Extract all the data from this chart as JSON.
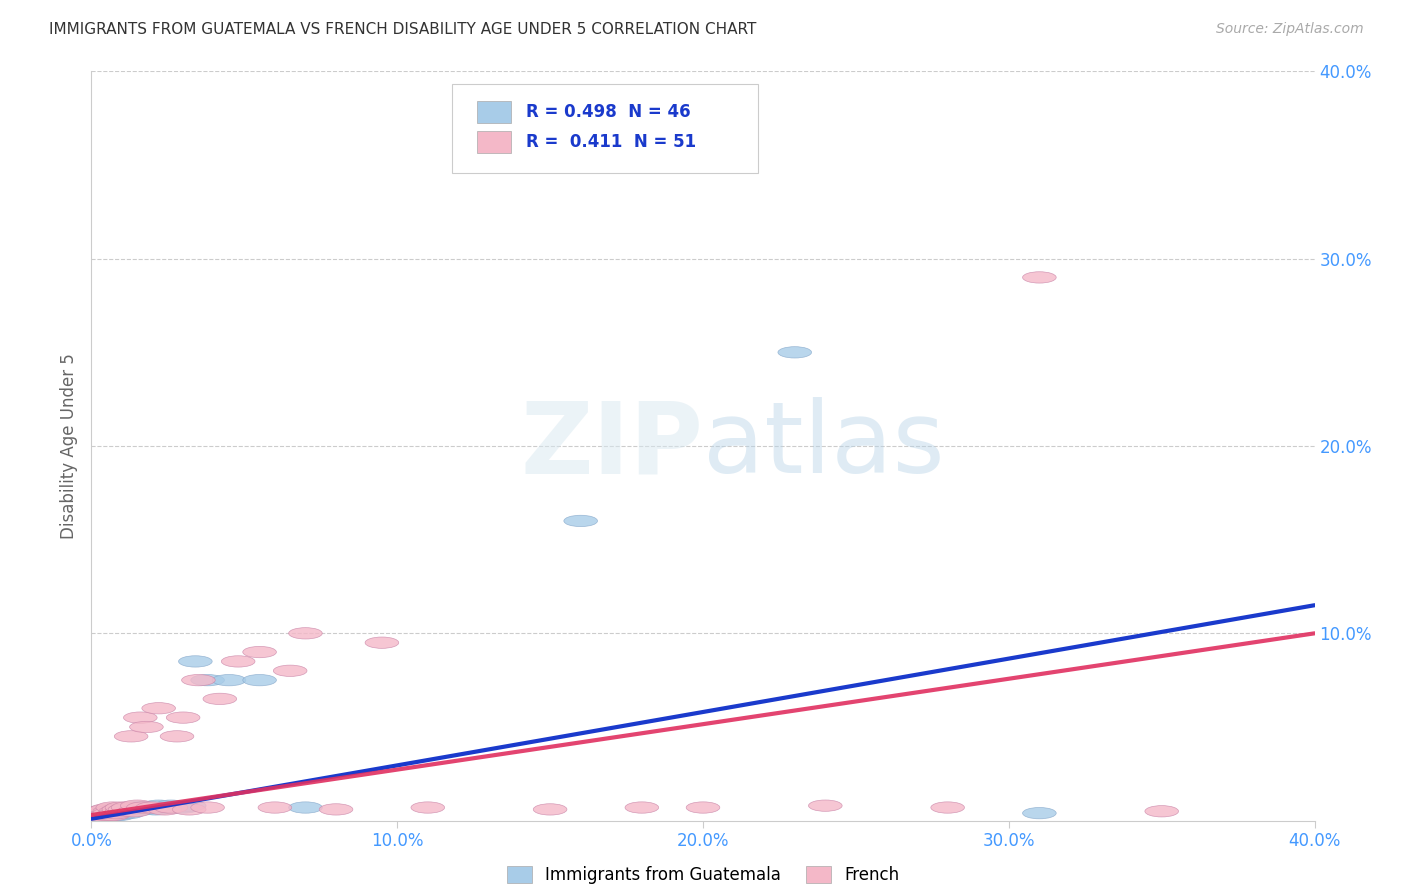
{
  "title": "IMMIGRANTS FROM GUATEMALA VS FRENCH DISABILITY AGE UNDER 5 CORRELATION CHART",
  "source": "Source: ZipAtlas.com",
  "ylabel": "Disability Age Under 5",
  "xlim": [
    0.0,
    0.4
  ],
  "ylim": [
    0.0,
    0.4
  ],
  "xtick_labels": [
    "0.0%",
    "10.0%",
    "20.0%",
    "30.0%",
    "40.0%"
  ],
  "xtick_values": [
    0.0,
    0.1,
    0.2,
    0.3,
    0.4
  ],
  "ytick_labels": [
    "10.0%",
    "20.0%",
    "30.0%",
    "40.0%"
  ],
  "ytick_values": [
    0.1,
    0.2,
    0.3,
    0.4
  ],
  "legend1_R": "0.498",
  "legend1_N": "46",
  "legend2_R": "0.411",
  "legend2_N": "51",
  "blue_color": "#a8cce8",
  "pink_color": "#f4b8c8",
  "blue_line_color": "#1a3acc",
  "pink_line_color": "#e03060",
  "axis_label_color": "#4499ff",
  "blue_scatter_x": [
    0.001,
    0.002,
    0.002,
    0.003,
    0.003,
    0.004,
    0.004,
    0.005,
    0.005,
    0.006,
    0.006,
    0.007,
    0.007,
    0.008,
    0.008,
    0.009,
    0.009,
    0.01,
    0.01,
    0.011,
    0.011,
    0.012,
    0.012,
    0.013,
    0.014,
    0.015,
    0.016,
    0.017,
    0.018,
    0.019,
    0.02,
    0.021,
    0.022,
    0.024,
    0.026,
    0.028,
    0.03,
    0.032,
    0.034,
    0.038,
    0.045,
    0.055,
    0.07,
    0.16,
    0.23,
    0.31
  ],
  "blue_scatter_y": [
    0.003,
    0.004,
    0.002,
    0.005,
    0.003,
    0.003,
    0.005,
    0.004,
    0.002,
    0.005,
    0.003,
    0.004,
    0.006,
    0.003,
    0.005,
    0.004,
    0.003,
    0.005,
    0.004,
    0.006,
    0.005,
    0.004,
    0.006,
    0.005,
    0.007,
    0.007,
    0.007,
    0.006,
    0.007,
    0.007,
    0.007,
    0.006,
    0.008,
    0.007,
    0.008,
    0.007,
    0.007,
    0.008,
    0.085,
    0.075,
    0.075,
    0.075,
    0.007,
    0.16,
    0.25,
    0.004
  ],
  "pink_scatter_x": [
    0.001,
    0.002,
    0.002,
    0.003,
    0.003,
    0.004,
    0.004,
    0.005,
    0.005,
    0.006,
    0.006,
    0.007,
    0.007,
    0.008,
    0.008,
    0.009,
    0.01,
    0.01,
    0.011,
    0.012,
    0.013,
    0.014,
    0.015,
    0.016,
    0.017,
    0.018,
    0.02,
    0.022,
    0.024,
    0.026,
    0.028,
    0.03,
    0.032,
    0.035,
    0.038,
    0.042,
    0.048,
    0.055,
    0.06,
    0.065,
    0.07,
    0.08,
    0.095,
    0.11,
    0.15,
    0.18,
    0.2,
    0.24,
    0.28,
    0.31,
    0.35
  ],
  "pink_scatter_y": [
    0.003,
    0.004,
    0.002,
    0.005,
    0.003,
    0.004,
    0.002,
    0.006,
    0.003,
    0.005,
    0.004,
    0.003,
    0.007,
    0.005,
    0.004,
    0.006,
    0.005,
    0.007,
    0.006,
    0.007,
    0.045,
    0.005,
    0.008,
    0.055,
    0.007,
    0.05,
    0.007,
    0.06,
    0.006,
    0.007,
    0.045,
    0.055,
    0.006,
    0.075,
    0.007,
    0.065,
    0.085,
    0.09,
    0.007,
    0.08,
    0.1,
    0.006,
    0.095,
    0.007,
    0.006,
    0.007,
    0.007,
    0.008,
    0.007,
    0.29,
    0.005
  ],
  "blue_line_x": [
    0.0,
    0.4
  ],
  "blue_line_y": [
    0.001,
    0.115
  ],
  "pink_line_x": [
    0.0,
    0.4
  ],
  "pink_line_y": [
    0.003,
    0.1
  ]
}
